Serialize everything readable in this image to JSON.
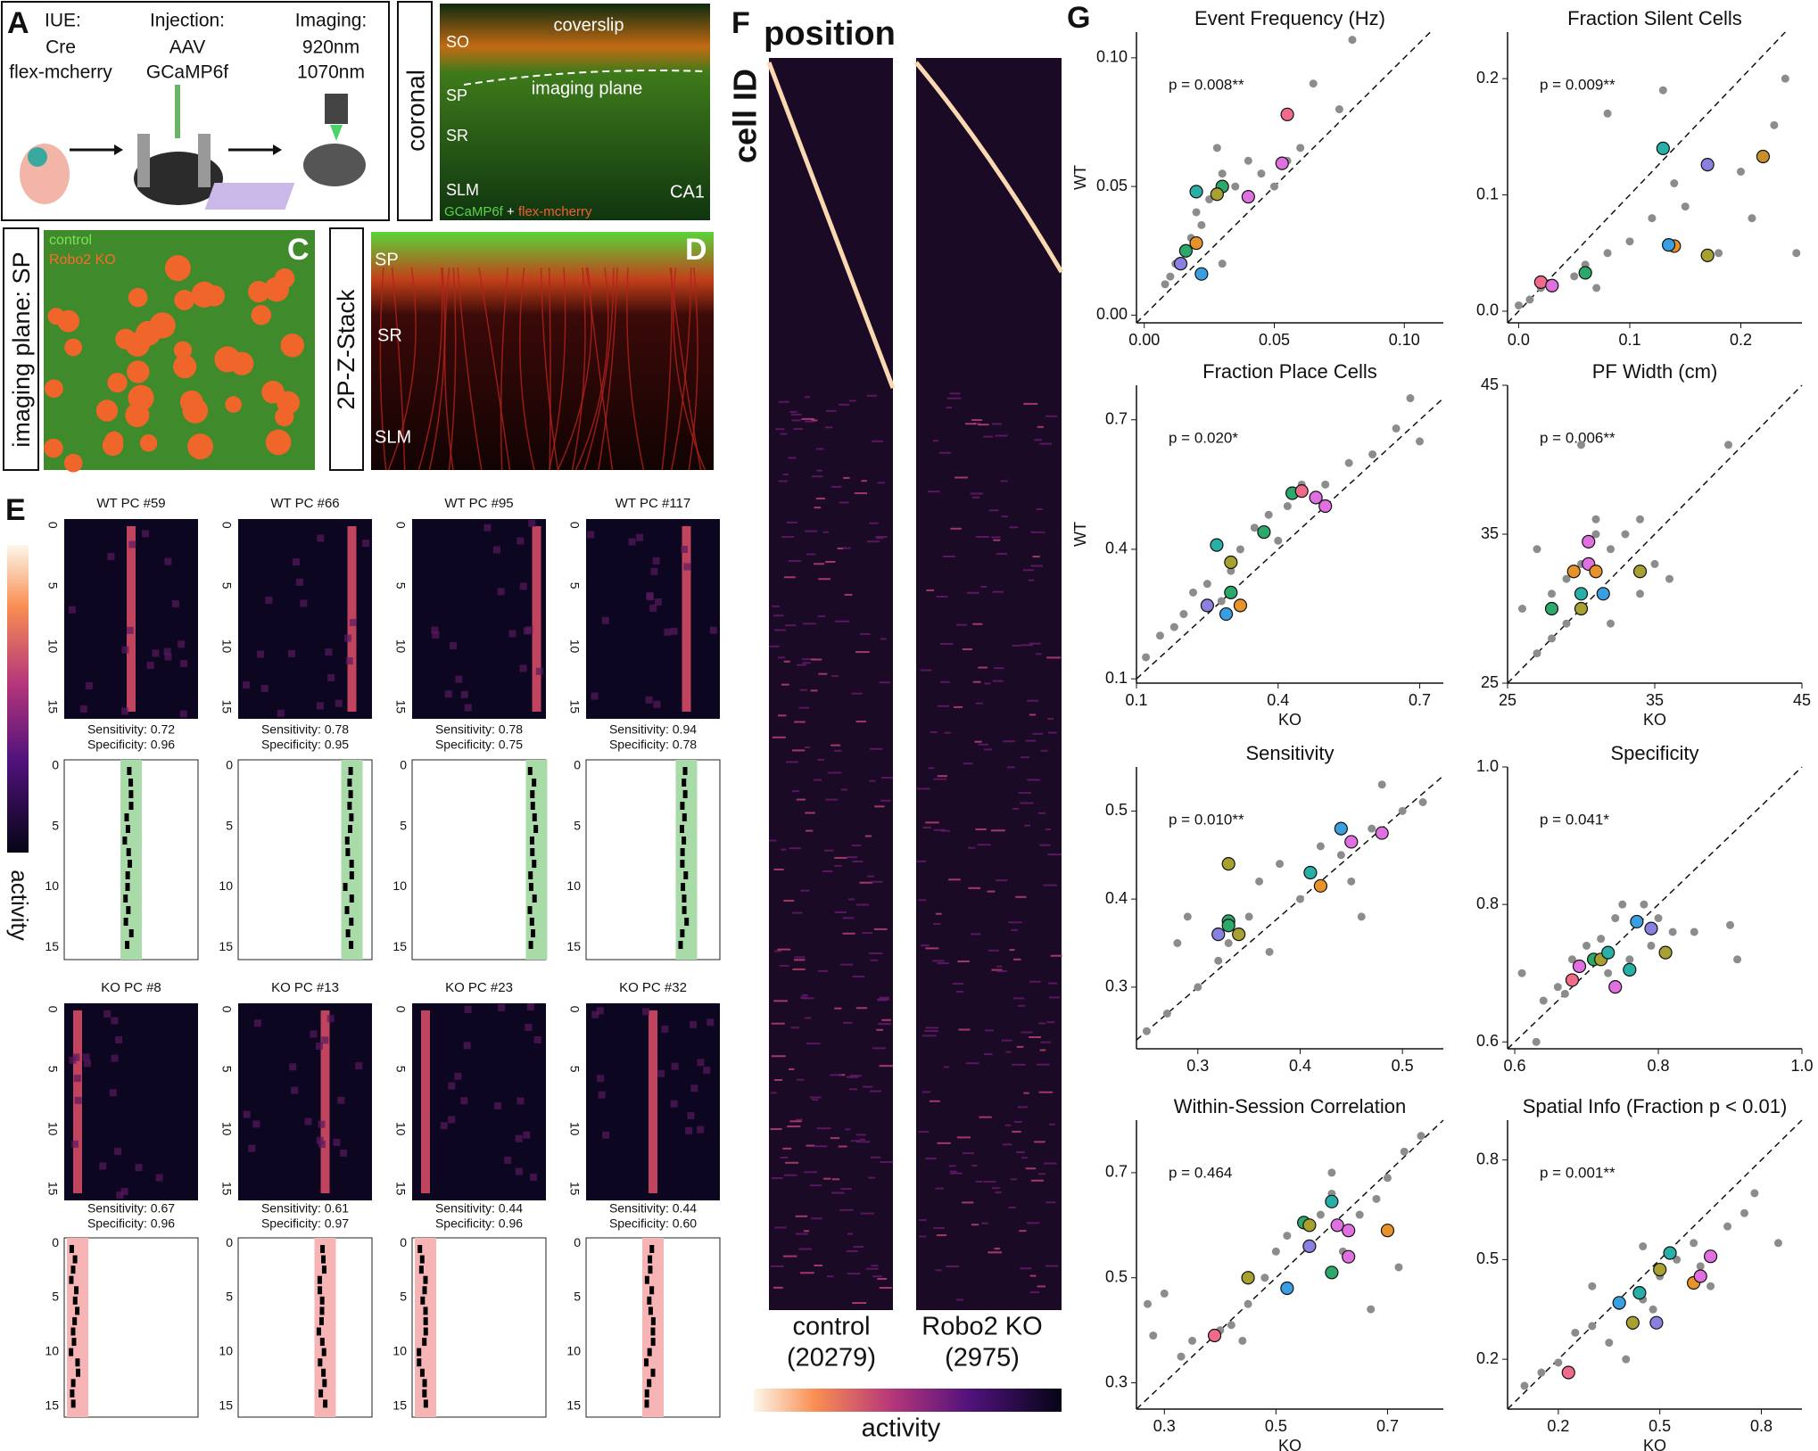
{
  "panels": {
    "A": {
      "label": "A",
      "iue": "IUE:",
      "iue_items": [
        "Cre",
        "flex-mcherry"
      ],
      "injection": "Injection:",
      "injection_items": [
        "AAV",
        "GCaMP6f"
      ],
      "imaging": "Imaging:",
      "imaging_items": [
        "920nm",
        "1070nm"
      ]
    },
    "B": {
      "side": "coronal",
      "coverslip": "coverslip",
      "plane": "imaging plane",
      "layers": [
        "SO",
        "SP",
        "SR",
        "SLM"
      ],
      "region": "CA1",
      "legend": [
        "GCaMP6f",
        "+",
        "flex-mcherry"
      ]
    },
    "C": {
      "label": "C",
      "side": "imaging plane: SP",
      "legend": [
        "control",
        "Robo2 KO"
      ]
    },
    "D": {
      "label": "D",
      "side": "2P-Z-Stack",
      "layers": [
        "SP",
        "SR",
        "SLM"
      ]
    },
    "E": {
      "label": "E",
      "colorbar": "activity",
      "trial_ticks": [
        0,
        5,
        10,
        15
      ],
      "cells": [
        {
          "title": "WT PC #59",
          "sensitivity": "Sensitivity: 0.72",
          "specificity": "Specificity: 0.96"
        },
        {
          "title": "WT PC #66",
          "sensitivity": "Sensitivity: 0.78",
          "specificity": "Specificity: 0.95"
        },
        {
          "title": "WT PC #95",
          "sensitivity": "Sensitivity: 0.78",
          "specificity": "Specificity: 0.75"
        },
        {
          "title": "WT PC #117",
          "sensitivity": "Sensitivity: 0.94",
          "specificity": "Specificity: 0.78"
        },
        {
          "title": "KO PC #8",
          "sensitivity": "Sensitivity: 0.67",
          "specificity": "Specificity: 0.96"
        },
        {
          "title": "KO PC #13",
          "sensitivity": "Sensitivity: 0.61",
          "specificity": "Specificity: 0.97"
        },
        {
          "title": "KO PC #23",
          "sensitivity": "Sensitivity: 0.44",
          "specificity": "Specificity: 0.96"
        },
        {
          "title": "KO PC #32",
          "sensitivity": "Sensitivity: 0.44",
          "specificity": "Specificity: 0.60"
        }
      ]
    },
    "F": {
      "label": "F",
      "x_label": "position",
      "y_label": "cell ID",
      "groups": [
        "control",
        "Robo2 KO"
      ],
      "counts": [
        "(20279)",
        "(2975)"
      ],
      "colorbar": "activity"
    },
    "G": {
      "label": "G"
    }
  },
  "chart_data": [
    {
      "type": "scatter",
      "title": "Event Frequency (Hz)",
      "annotation": "p = 0.008**",
      "y_label": "WT",
      "xlim": [
        -0.003,
        0.115
      ],
      "ylim": [
        -0.003,
        0.11
      ],
      "xticks": [
        {
          "value": 0,
          "label": "0.00"
        },
        0.05,
        {
          "value": 0.1,
          "label": "0.10"
        }
      ],
      "yticks": [
        {
          "value": 0,
          "label": "0.00"
        },
        0.05,
        {
          "value": 0.1,
          "label": "0.10"
        }
      ],
      "series": [
        {
          "color": "#8c8c8c",
          "x": [
            0.01,
            0.012,
            0.015,
            0.018,
            0.02,
            0.022,
            0.025,
            0.03,
            0.03,
            0.035,
            0.04,
            0.045,
            0.05,
            0.055,
            0.06,
            0.065,
            0.075,
            0.08,
            0.008,
            0.028
          ],
          "values": [
            0.015,
            0.02,
            0.025,
            0.03,
            0.04,
            0.035,
            0.045,
            0.055,
            0.02,
            0.05,
            0.06,
            0.055,
            0.05,
            0.06,
            0.065,
            0.09,
            0.08,
            0.107,
            0.012,
            0.065
          ]
        },
        {
          "colors": [
            "#f06a8a",
            "#e070e0",
            "#2ba86a",
            "#e070e0",
            "#28b0a8",
            "#e8922a",
            "#2ba86a",
            "#8a80e0",
            "#3a9ee0",
            "#a8a030"
          ],
          "x": [
            0.055,
            0.053,
            0.03,
            0.04,
            0.02,
            0.02,
            0.016,
            0.014,
            0.022,
            0.028
          ],
          "values": [
            0.078,
            0.059,
            0.05,
            0.046,
            0.048,
            0.028,
            0.025,
            0.02,
            0.016,
            0.047
          ]
        }
      ]
    },
    {
      "type": "scatter",
      "title": "Fraction Silent Cells",
      "annotation": "p = 0.009**",
      "xlim": [
        -0.01,
        0.255
      ],
      "ylim": [
        -0.01,
        0.24
      ],
      "xticks": [
        {
          "value": 0,
          "label": "0.0"
        },
        0.1,
        0.2
      ],
      "yticks": [
        {
          "value": 0,
          "label": "0.0"
        },
        0.1,
        0.2
      ],
      "series": [
        {
          "color": "#8c8c8c",
          "x": [
            0,
            0.01,
            0.02,
            0.03,
            0.05,
            0.06,
            0.07,
            0.08,
            0.1,
            0.12,
            0.14,
            0.15,
            0.18,
            0.2,
            0.21,
            0.23,
            0.25,
            0.13,
            0.08,
            0.24
          ],
          "values": [
            0.005,
            0.01,
            0.02,
            0.02,
            0.03,
            0.04,
            0.02,
            0.05,
            0.06,
            0.08,
            0.11,
            0.09,
            0.05,
            0.12,
            0.08,
            0.16,
            0.05,
            0.19,
            0.17,
            0.2
          ]
        },
        {
          "colors": [
            "#f06a8a",
            "#e070e0",
            "#2ba86a",
            "#28b0a8",
            "#e8922a",
            "#8a80e0",
            "#a8a030",
            "#c8902a",
            "#3a9ee0"
          ],
          "x": [
            0.02,
            0.03,
            0.06,
            0.13,
            0.14,
            0.17,
            0.17,
            0.22,
            0.135
          ],
          "values": [
            0.025,
            0.022,
            0.033,
            0.14,
            0.056,
            0.126,
            0.048,
            0.133,
            0.057
          ]
        }
      ]
    },
    {
      "type": "scatter",
      "title": "Fraction Place Cells",
      "annotation": "p = 0.020*",
      "y_label": "WT",
      "x_label": "KO",
      "xlim": [
        0.1,
        0.75
      ],
      "ylim": [
        0.09,
        0.78
      ],
      "xticks": [
        0.1,
        0.4,
        0.7
      ],
      "yticks": [
        0.1,
        0.4,
        0.7
      ],
      "series": [
        {
          "color": "#8c8c8c",
          "x": [
            0.12,
            0.15,
            0.18,
            0.2,
            0.22,
            0.25,
            0.3,
            0.32,
            0.35,
            0.38,
            0.42,
            0.45,
            0.5,
            0.55,
            0.6,
            0.65,
            0.68,
            0.7,
            0.28,
            0.4
          ],
          "values": [
            0.15,
            0.2,
            0.22,
            0.25,
            0.3,
            0.32,
            0.35,
            0.4,
            0.45,
            0.48,
            0.5,
            0.55,
            0.55,
            0.6,
            0.62,
            0.68,
            0.75,
            0.65,
            0.28,
            0.42
          ]
        },
        {
          "colors": [
            "#28b0a8",
            "#a8a030",
            "#8a80e0",
            "#2ba86a",
            "#e8922a",
            "#3a9ee0",
            "#2ba86a",
            "#2ba86a",
            "#f06a8a",
            "#e070e0",
            "#e070e0"
          ],
          "x": [
            0.27,
            0.3,
            0.25,
            0.3,
            0.32,
            0.29,
            0.37,
            0.43,
            0.45,
            0.48,
            0.5
          ],
          "values": [
            0.41,
            0.37,
            0.27,
            0.3,
            0.27,
            0.25,
            0.44,
            0.53,
            0.535,
            0.52,
            0.5
          ]
        }
      ]
    },
    {
      "type": "scatter",
      "title": "PF Width (cm)",
      "annotation": "p = 0.006**",
      "x_label": "KO",
      "xlim": [
        25,
        45
      ],
      "ylim": [
        25,
        45
      ],
      "xticks": [
        25,
        35,
        45
      ],
      "yticks": [
        25,
        35,
        45
      ],
      "series": [
        {
          "color": "#8c8c8c",
          "x": [
            26,
            27,
            28,
            28,
            29,
            29,
            30,
            30,
            31,
            31,
            32,
            32,
            33,
            34,
            34,
            35,
            36,
            40,
            30,
            27
          ],
          "values": [
            30,
            34,
            28,
            31,
            32,
            29,
            33,
            30,
            36,
            35,
            34,
            29,
            35,
            31,
            36,
            33,
            32,
            41,
            41,
            27
          ]
        },
        {
          "colors": [
            "#2ba86a",
            "#e8922a",
            "#28b0a8",
            "#a8a030",
            "#e070e0",
            "#e070e0",
            "#e8922a",
            "#3a9ee0",
            "#a8a030"
          ],
          "x": [
            28,
            29.5,
            30,
            30,
            30.5,
            30.5,
            31,
            31.5,
            34
          ],
          "values": [
            30,
            32.5,
            31,
            30,
            33,
            34.5,
            32.5,
            31,
            32.5
          ]
        }
      ]
    },
    {
      "type": "scatter",
      "title": "Sensitivity",
      "annotation": "p = 0.010**",
      "xlim": [
        0.24,
        0.54
      ],
      "ylim": [
        0.23,
        0.55
      ],
      "xticks": [
        0.3,
        0.4,
        0.5
      ],
      "yticks": [
        0.3,
        0.4,
        0.5
      ],
      "series": [
        {
          "color": "#8c8c8c",
          "x": [
            0.25,
            0.27,
            0.28,
            0.29,
            0.3,
            0.32,
            0.33,
            0.35,
            0.36,
            0.38,
            0.4,
            0.42,
            0.44,
            0.45,
            0.47,
            0.5,
            0.52,
            0.48,
            0.37,
            0.46
          ],
          "values": [
            0.25,
            0.27,
            0.35,
            0.38,
            0.3,
            0.33,
            0.35,
            0.38,
            0.42,
            0.44,
            0.4,
            0.46,
            0.45,
            0.42,
            0.48,
            0.5,
            0.51,
            0.53,
            0.34,
            0.38
          ]
        },
        {
          "colors": [
            "#a8a030",
            "#2ba86a",
            "#2ba86a",
            "#8a80e0",
            "#a8a030",
            "#28b0a8",
            "#e8922a",
            "#3a9ee0",
            "#e070e0",
            "#e070e0"
          ],
          "x": [
            0.33,
            0.33,
            0.33,
            0.32,
            0.34,
            0.41,
            0.42,
            0.44,
            0.45,
            0.48
          ],
          "values": [
            0.44,
            0.375,
            0.37,
            0.36,
            0.36,
            0.43,
            0.415,
            0.48,
            0.465,
            0.475
          ]
        }
      ]
    },
    {
      "type": "scatter",
      "title": "Specificity",
      "annotation": "p = 0.041*",
      "xlim": [
        0.59,
        1.0
      ],
      "ylim": [
        0.59,
        1.0
      ],
      "xticks": [
        0.6,
        0.8,
        {
          "value": 1,
          "label": "1.0"
        }
      ],
      "yticks": [
        0.6,
        0.8,
        {
          "value": 1,
          "label": "1.0"
        }
      ],
      "series": [
        {
          "color": "#8c8c8c",
          "x": [
            0.61,
            0.63,
            0.64,
            0.66,
            0.67,
            0.68,
            0.7,
            0.72,
            0.74,
            0.75,
            0.78,
            0.8,
            0.82,
            0.85,
            0.9,
            0.91,
            0.73,
            0.76,
            0.79
          ],
          "values": [
            0.7,
            0.6,
            0.66,
            0.68,
            0.67,
            0.72,
            0.74,
            0.75,
            0.78,
            0.8,
            0.8,
            0.78,
            0.76,
            0.76,
            0.77,
            0.72,
            0.7,
            0.72,
            0.74
          ]
        },
        {
          "colors": [
            "#f06a8a",
            "#e070e0",
            "#2ba86a",
            "#a8a030",
            "#28b0a8",
            "#e070e0",
            "#28b0a8",
            "#3a9ee0",
            "#8a80e0",
            "#a8a030"
          ],
          "x": [
            0.68,
            0.69,
            0.71,
            0.72,
            0.73,
            0.74,
            0.76,
            0.77,
            0.79,
            0.81
          ],
          "values": [
            0.69,
            0.71,
            0.72,
            0.72,
            0.73,
            0.68,
            0.705,
            0.775,
            0.765,
            0.73
          ]
        }
      ]
    },
    {
      "type": "scatter",
      "title": "Within-Session Correlation",
      "annotation": "p = 0.464",
      "x_label": "KO",
      "xlim": [
        0.25,
        0.8
      ],
      "ylim": [
        0.25,
        0.8
      ],
      "xticks": [
        0.3,
        0.5,
        0.7
      ],
      "yticks": [
        0.3,
        0.5,
        0.7
      ],
      "series": [
        {
          "color": "#8c8c8c",
          "x": [
            0.27,
            0.28,
            0.3,
            0.33,
            0.35,
            0.4,
            0.42,
            0.44,
            0.45,
            0.48,
            0.5,
            0.52,
            0.55,
            0.58,
            0.6,
            0.62,
            0.65,
            0.68,
            0.7,
            0.73,
            0.76,
            0.72,
            0.67,
            0.6
          ],
          "values": [
            0.45,
            0.39,
            0.47,
            0.35,
            0.38,
            0.4,
            0.41,
            0.38,
            0.45,
            0.5,
            0.55,
            0.58,
            0.6,
            0.62,
            0.66,
            0.55,
            0.62,
            0.65,
            0.69,
            0.74,
            0.77,
            0.52,
            0.44,
            0.7
          ]
        },
        {
          "colors": [
            "#f06a8a",
            "#a8a030",
            "#3a9ee0",
            "#2ba86a",
            "#a8a030",
            "#8a80e0",
            "#28b0a8",
            "#e070e0",
            "#e070e0",
            "#2ba86a",
            "#e070e0",
            "#e8922a"
          ],
          "x": [
            0.39,
            0.45,
            0.52,
            0.55,
            0.56,
            0.56,
            0.6,
            0.61,
            0.63,
            0.6,
            0.63,
            0.7
          ],
          "values": [
            0.39,
            0.5,
            0.48,
            0.605,
            0.6,
            0.56,
            0.645,
            0.6,
            0.59,
            0.51,
            0.54,
            0.59
          ]
        }
      ]
    },
    {
      "type": "scatter",
      "title": "Spatial Info (Fraction p < 0.01)",
      "annotation": "p = 0.001**",
      "x_label": "KO",
      "xlim": [
        0.05,
        0.92
      ],
      "ylim": [
        0.05,
        0.92
      ],
      "xticks": [
        0.2,
        0.5,
        0.8
      ],
      "yticks": [
        0.2,
        0.5,
        0.8
      ],
      "series": [
        {
          "color": "#8c8c8c",
          "x": [
            0.1,
            0.15,
            0.2,
            0.25,
            0.3,
            0.35,
            0.38,
            0.4,
            0.42,
            0.45,
            0.48,
            0.5,
            0.55,
            0.6,
            0.62,
            0.65,
            0.7,
            0.75,
            0.78,
            0.85,
            0.45,
            0.3
          ],
          "values": [
            0.12,
            0.16,
            0.19,
            0.28,
            0.3,
            0.25,
            0.36,
            0.2,
            0.3,
            0.38,
            0.35,
            0.45,
            0.5,
            0.55,
            0.48,
            0.42,
            0.6,
            0.64,
            0.7,
            0.55,
            0.54,
            0.42
          ]
        },
        {
          "colors": [
            "#f06a8a",
            "#3a9ee0",
            "#a8a030",
            "#28b0a8",
            "#8a80e0",
            "#a8a030",
            "#28b0a8",
            "#e8922a",
            "#e070e0",
            "#e070e0"
          ],
          "x": [
            0.23,
            0.38,
            0.42,
            0.44,
            0.49,
            0.5,
            0.53,
            0.6,
            0.62,
            0.65
          ],
          "values": [
            0.16,
            0.37,
            0.31,
            0.4,
            0.31,
            0.47,
            0.52,
            0.43,
            0.45,
            0.51
          ]
        }
      ]
    }
  ]
}
